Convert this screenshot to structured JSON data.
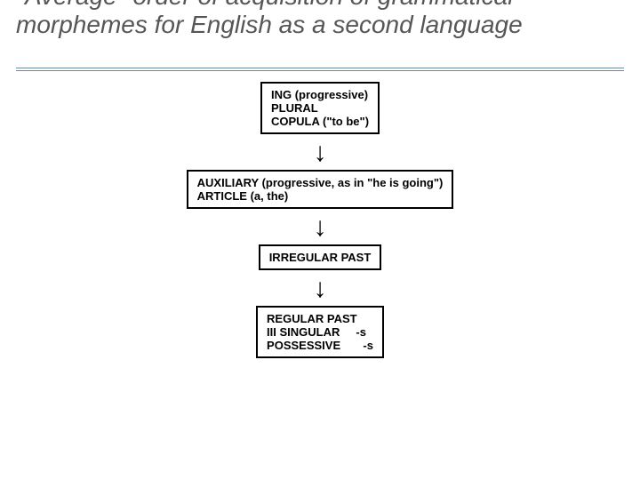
{
  "title": {
    "text": "\"Average\" order of acquisition of grammatical morphemes for English as a second language",
    "color": "#565656",
    "fontsize": 28,
    "rule_color": "#6b8ca0"
  },
  "flow": {
    "type": "flowchart",
    "direction": "vertical",
    "node_border_color": "#000000",
    "node_bg_color": "#ffffff",
    "node_fontsize": 13,
    "arrow_glyph": "↓",
    "arrow_fontsize": 30,
    "nodes": [
      {
        "id": "n1",
        "text": "ING (progressive)\nPLURAL\nCOPULA (\"to be\")"
      },
      {
        "id": "n2",
        "text": "AUXILIARY (progressive, as in \"he is going\")\nARTICLE (a, the)"
      },
      {
        "id": "n3",
        "text": "IRREGULAR PAST"
      },
      {
        "id": "n4",
        "text": "REGULAR PAST\nIII SINGULAR     -s\nPOSSESSIVE       -s"
      }
    ],
    "edges": [
      {
        "from": "n1",
        "to": "n2"
      },
      {
        "from": "n2",
        "to": "n3"
      },
      {
        "from": "n3",
        "to": "n4"
      }
    ]
  }
}
